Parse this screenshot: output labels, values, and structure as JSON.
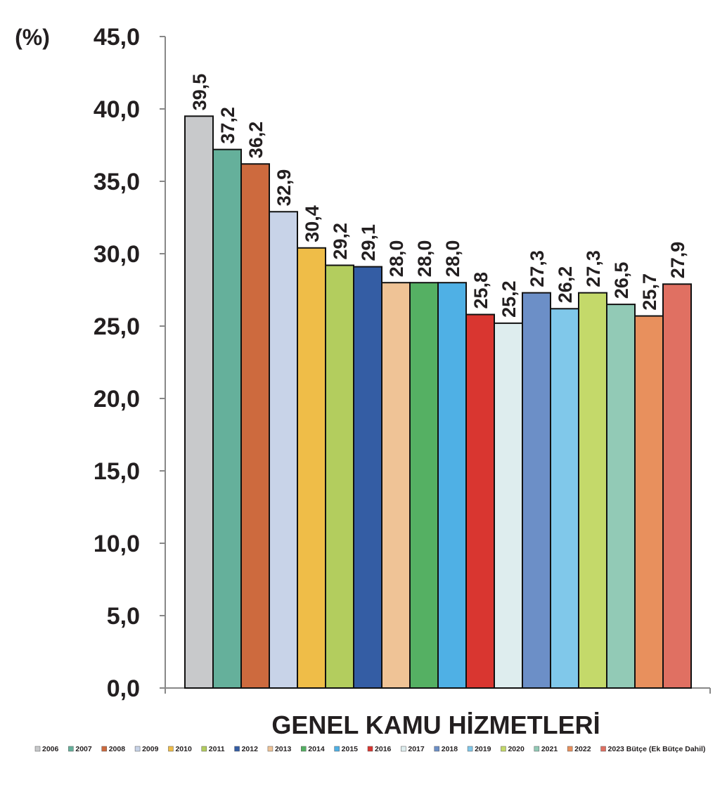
{
  "chart_data": {
    "type": "bar",
    "ylabel": "(%)",
    "categories": [
      "GENEL KAMU HİZMETLERİ"
    ],
    "ylim": [
      0,
      45
    ],
    "yticks": [
      {
        "value": 0,
        "label": "0,0"
      },
      {
        "value": 5,
        "label": "5,0"
      },
      {
        "value": 10,
        "label": "10,0"
      },
      {
        "value": 15,
        "label": "15,0"
      },
      {
        "value": 20,
        "label": "20,0"
      },
      {
        "value": 25,
        "label": "25,0"
      },
      {
        "value": 30,
        "label": "30,0"
      },
      {
        "value": 35,
        "label": "35,0"
      },
      {
        "value": 40,
        "label": "40,0"
      },
      {
        "value": 45,
        "label": "45,0"
      }
    ],
    "series": [
      {
        "name": "2006",
        "color": "#c8c9cb",
        "values": [
          39.5
        ],
        "value_labels": [
          "39,5"
        ]
      },
      {
        "name": "2007",
        "color": "#65b09b",
        "values": [
          37.2
        ],
        "value_labels": [
          "37,2"
        ]
      },
      {
        "name": "2008",
        "color": "#cd6a3e",
        "values": [
          36.2
        ],
        "value_labels": [
          "36,2"
        ]
      },
      {
        "name": "2009",
        "color": "#c8d3e8",
        "values": [
          32.9
        ],
        "value_labels": [
          "32,9"
        ]
      },
      {
        "name": "2010",
        "color": "#efbd48",
        "values": [
          30.4
        ],
        "value_labels": [
          "30,4"
        ]
      },
      {
        "name": "2011",
        "color": "#b3cd5e",
        "values": [
          29.2
        ],
        "value_labels": [
          "29,2"
        ]
      },
      {
        "name": "2012",
        "color": "#345da4",
        "values": [
          29.1
        ],
        "value_labels": [
          "29,1"
        ]
      },
      {
        "name": "2013",
        "color": "#efc396",
        "values": [
          28.0
        ],
        "value_labels": [
          "28,0"
        ]
      },
      {
        "name": "2014",
        "color": "#55b063",
        "values": [
          28.0
        ],
        "value_labels": [
          "28,0"
        ]
      },
      {
        "name": "2015",
        "color": "#4fb0e5",
        "values": [
          28.0
        ],
        "value_labels": [
          "28,0"
        ]
      },
      {
        "name": "2016",
        "color": "#d93630",
        "values": [
          25.8
        ],
        "value_labels": [
          "25,8"
        ]
      },
      {
        "name": "2017",
        "color": "#deedee",
        "values": [
          25.2
        ],
        "value_labels": [
          "25,2"
        ]
      },
      {
        "name": "2018",
        "color": "#6c8fc7",
        "values": [
          27.3
        ],
        "value_labels": [
          "27,3"
        ]
      },
      {
        "name": "2019",
        "color": "#80c8ea",
        "values": [
          26.2
        ],
        "value_labels": [
          "26,2"
        ]
      },
      {
        "name": "2020",
        "color": "#c4d96a",
        "values": [
          27.3
        ],
        "value_labels": [
          "27,3"
        ]
      },
      {
        "name": "2021",
        "color": "#92cab6",
        "values": [
          26.5
        ],
        "value_labels": [
          "26,5"
        ]
      },
      {
        "name": "2022",
        "color": "#e8905d",
        "values": [
          25.7
        ],
        "value_labels": [
          "25,7"
        ]
      },
      {
        "name": "2023 Bütçe (Ek Bütçe Dahil)",
        "color": "#e07062",
        "values": [
          27.9
        ],
        "value_labels": [
          "27,9"
        ]
      }
    ]
  }
}
